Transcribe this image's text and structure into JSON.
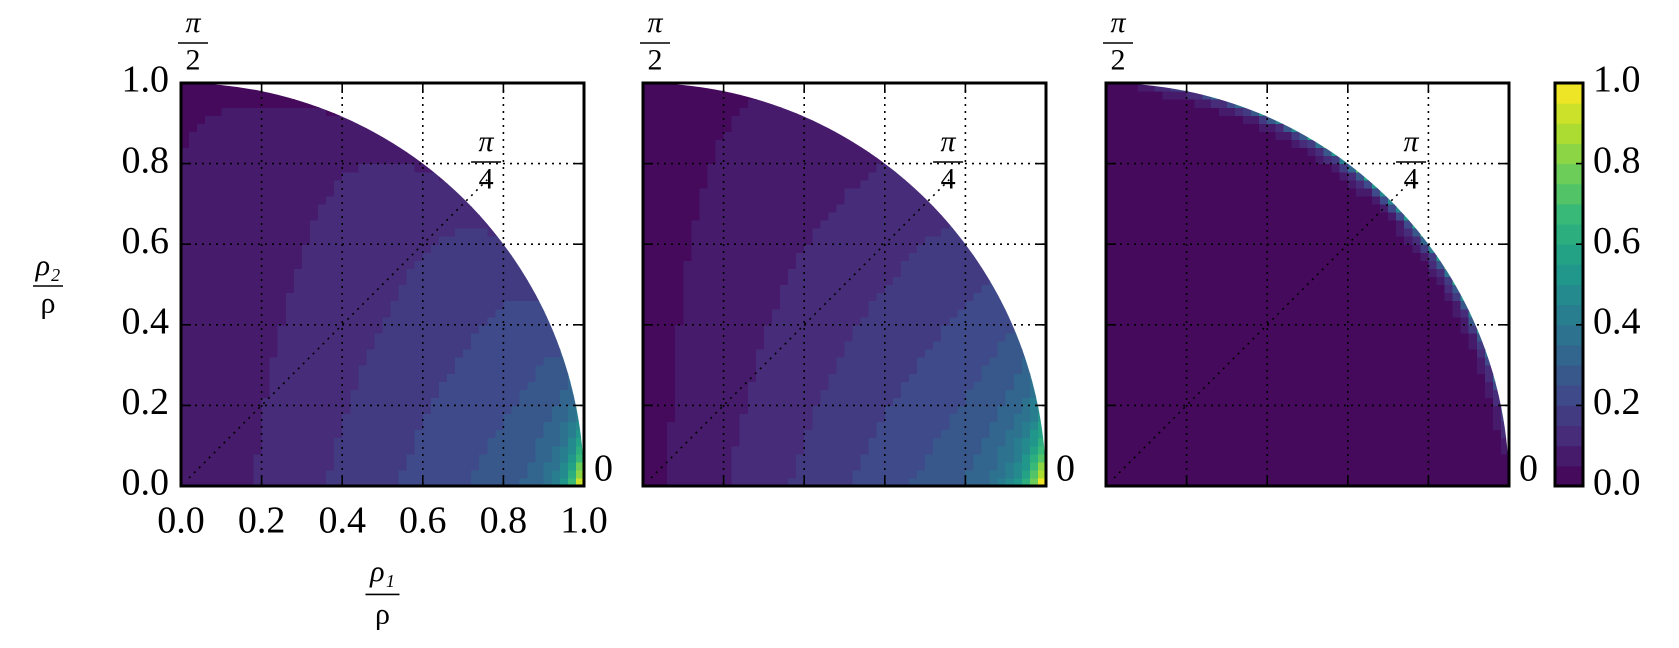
{
  "chart_data": [
    {
      "type": "contour",
      "xlim": [
        0,
        1
      ],
      "ylim": [
        0,
        1
      ],
      "xticks": [
        {
          "value": 0,
          "label": "0.0"
        },
        {
          "value": 0.2,
          "label": "0.2"
        },
        {
          "value": 0.4,
          "label": "0.4"
        },
        {
          "value": 0.6,
          "label": "0.6"
        },
        {
          "value": 0.8,
          "label": "0.8"
        },
        {
          "value": 1,
          "label": "1.0"
        }
      ],
      "yticks": [
        {
          "value": 0,
          "label": "0.0"
        },
        {
          "value": 0.2,
          "label": "0.2"
        },
        {
          "value": 0.4,
          "label": "0.4"
        },
        {
          "value": 0.6,
          "label": "0.6"
        },
        {
          "value": 0.8,
          "label": "0.8"
        },
        {
          "value": 1,
          "label": "1.0"
        }
      ],
      "xlabel": {
        "num": "ρ₁",
        "den": "ρ"
      },
      "ylabel": {
        "num": "ρ₂",
        "den": "ρ"
      },
      "annotations": [
        {
          "num": "π",
          "den": "2"
        },
        {
          "num": "π",
          "den": "4"
        },
        {
          "text": "0"
        }
      ],
      "grid": true
    },
    {
      "type": "contour",
      "xlim": [
        0,
        1
      ],
      "ylim": [
        0,
        1
      ],
      "xticks": [
        0,
        0.2,
        0.4,
        0.6,
        0.8,
        1
      ],
      "yticks": [
        0,
        0.2,
        0.4,
        0.6,
        0.8,
        1
      ],
      "annotations": [
        {
          "num": "π",
          "den": "2"
        },
        {
          "num": "π",
          "den": "4"
        },
        {
          "text": "0"
        }
      ],
      "grid": true
    },
    {
      "type": "contour",
      "xlim": [
        0,
        1
      ],
      "ylim": [
        0,
        1
      ],
      "xticks": [
        0,
        0.2,
        0.4,
        0.6,
        0.8,
        1
      ],
      "yticks": [
        0,
        0.2,
        0.4,
        0.6,
        0.8,
        1
      ],
      "annotations": [
        {
          "num": "π",
          "den": "2"
        },
        {
          "num": "π",
          "den": "4"
        },
        {
          "text": "0"
        }
      ],
      "grid": true
    },
    {
      "type": "colorbar",
      "ylim": [
        0,
        1
      ],
      "yticks": [
        {
          "value": 0,
          "label": "0.0"
        },
        {
          "value": 0.2,
          "label": "0.2"
        },
        {
          "value": 0.4,
          "label": "0.4"
        },
        {
          "value": 0.6,
          "label": "0.6"
        },
        {
          "value": 0.8,
          "label": "0.8"
        },
        {
          "value": 1,
          "label": "1.0"
        }
      ],
      "colormap": [
        "#440154",
        "#482878",
        "#3e4989",
        "#31688e",
        "#26828e",
        "#1f9e89",
        "#35b779",
        "#6ece58",
        "#b5de2b",
        "#fde725"
      ],
      "levels": 20
    }
  ]
}
